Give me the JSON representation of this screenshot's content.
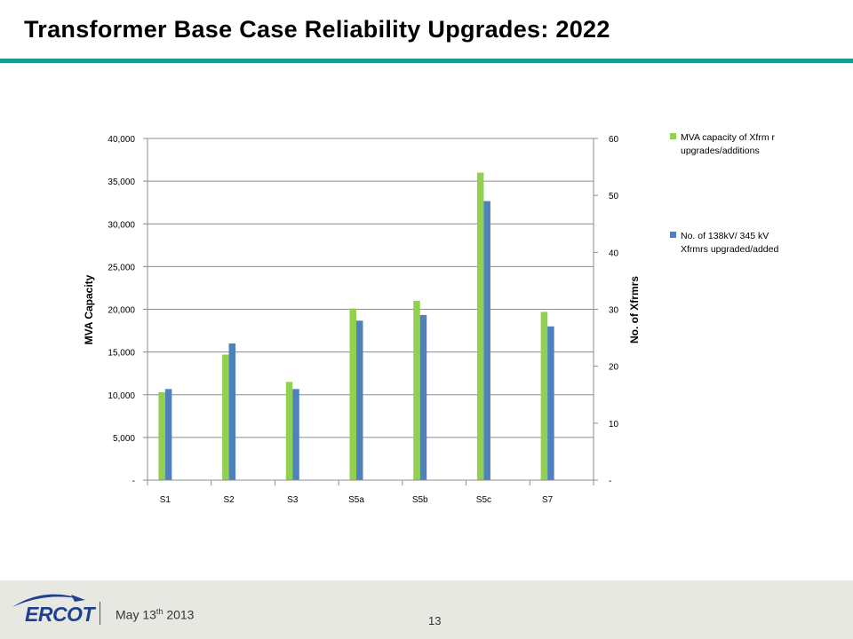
{
  "page": {
    "title": "Transformer Base Case Reliability Upgrades:  2022",
    "footer_date_main": "May 13",
    "footer_date_sup": "th",
    "footer_date_year": " 2013",
    "page_number": "13",
    "logo_text": "ERCOT"
  },
  "colors": {
    "title_rule": "#1a9a8a",
    "mva_series": "#92d050",
    "count_series": "#4f81bd"
  },
  "chart_data": {
    "type": "bar",
    "categories": [
      "S1",
      "S2",
      "S3",
      "S5a",
      "S5b",
      "S5c",
      "S7"
    ],
    "series": [
      {
        "name": "MVA capacity of Xfrmr upgrades/additions",
        "axis": "left",
        "values": [
          10300,
          14700,
          11500,
          20100,
          21000,
          36000,
          19700
        ]
      },
      {
        "name": "No. of 138kV/ 345 kV Xfrmrs upgraded/added",
        "axis": "right",
        "values": [
          16,
          24,
          16,
          28,
          29,
          49,
          27
        ]
      }
    ],
    "ylabel": "MVA Capacity",
    "y2label": "No. of Xfrmrs",
    "ylim": [
      0,
      40000
    ],
    "y2lim": [
      0,
      60
    ],
    "y_ticks": [
      0,
      5000,
      10000,
      15000,
      20000,
      25000,
      30000,
      35000,
      40000
    ],
    "y_tick_labels": [
      "-",
      "5,000",
      "10,000",
      "15,000",
      "20,000",
      "25,000",
      "30,000",
      "35,000",
      "40,000"
    ],
    "y2_ticks": [
      0,
      10,
      20,
      30,
      40,
      50,
      60
    ],
    "y2_tick_labels": [
      "-",
      "10",
      "20",
      "30",
      "40",
      "50",
      "60"
    ],
    "grid": true,
    "legend_position": "right",
    "legend_labels": [
      [
        "MVA capacity of Xfrm r",
        "upgrades/additions"
      ],
      [
        "No. of 138kV/ 345 kV",
        "Xfrmrs upgraded/added"
      ]
    ]
  }
}
